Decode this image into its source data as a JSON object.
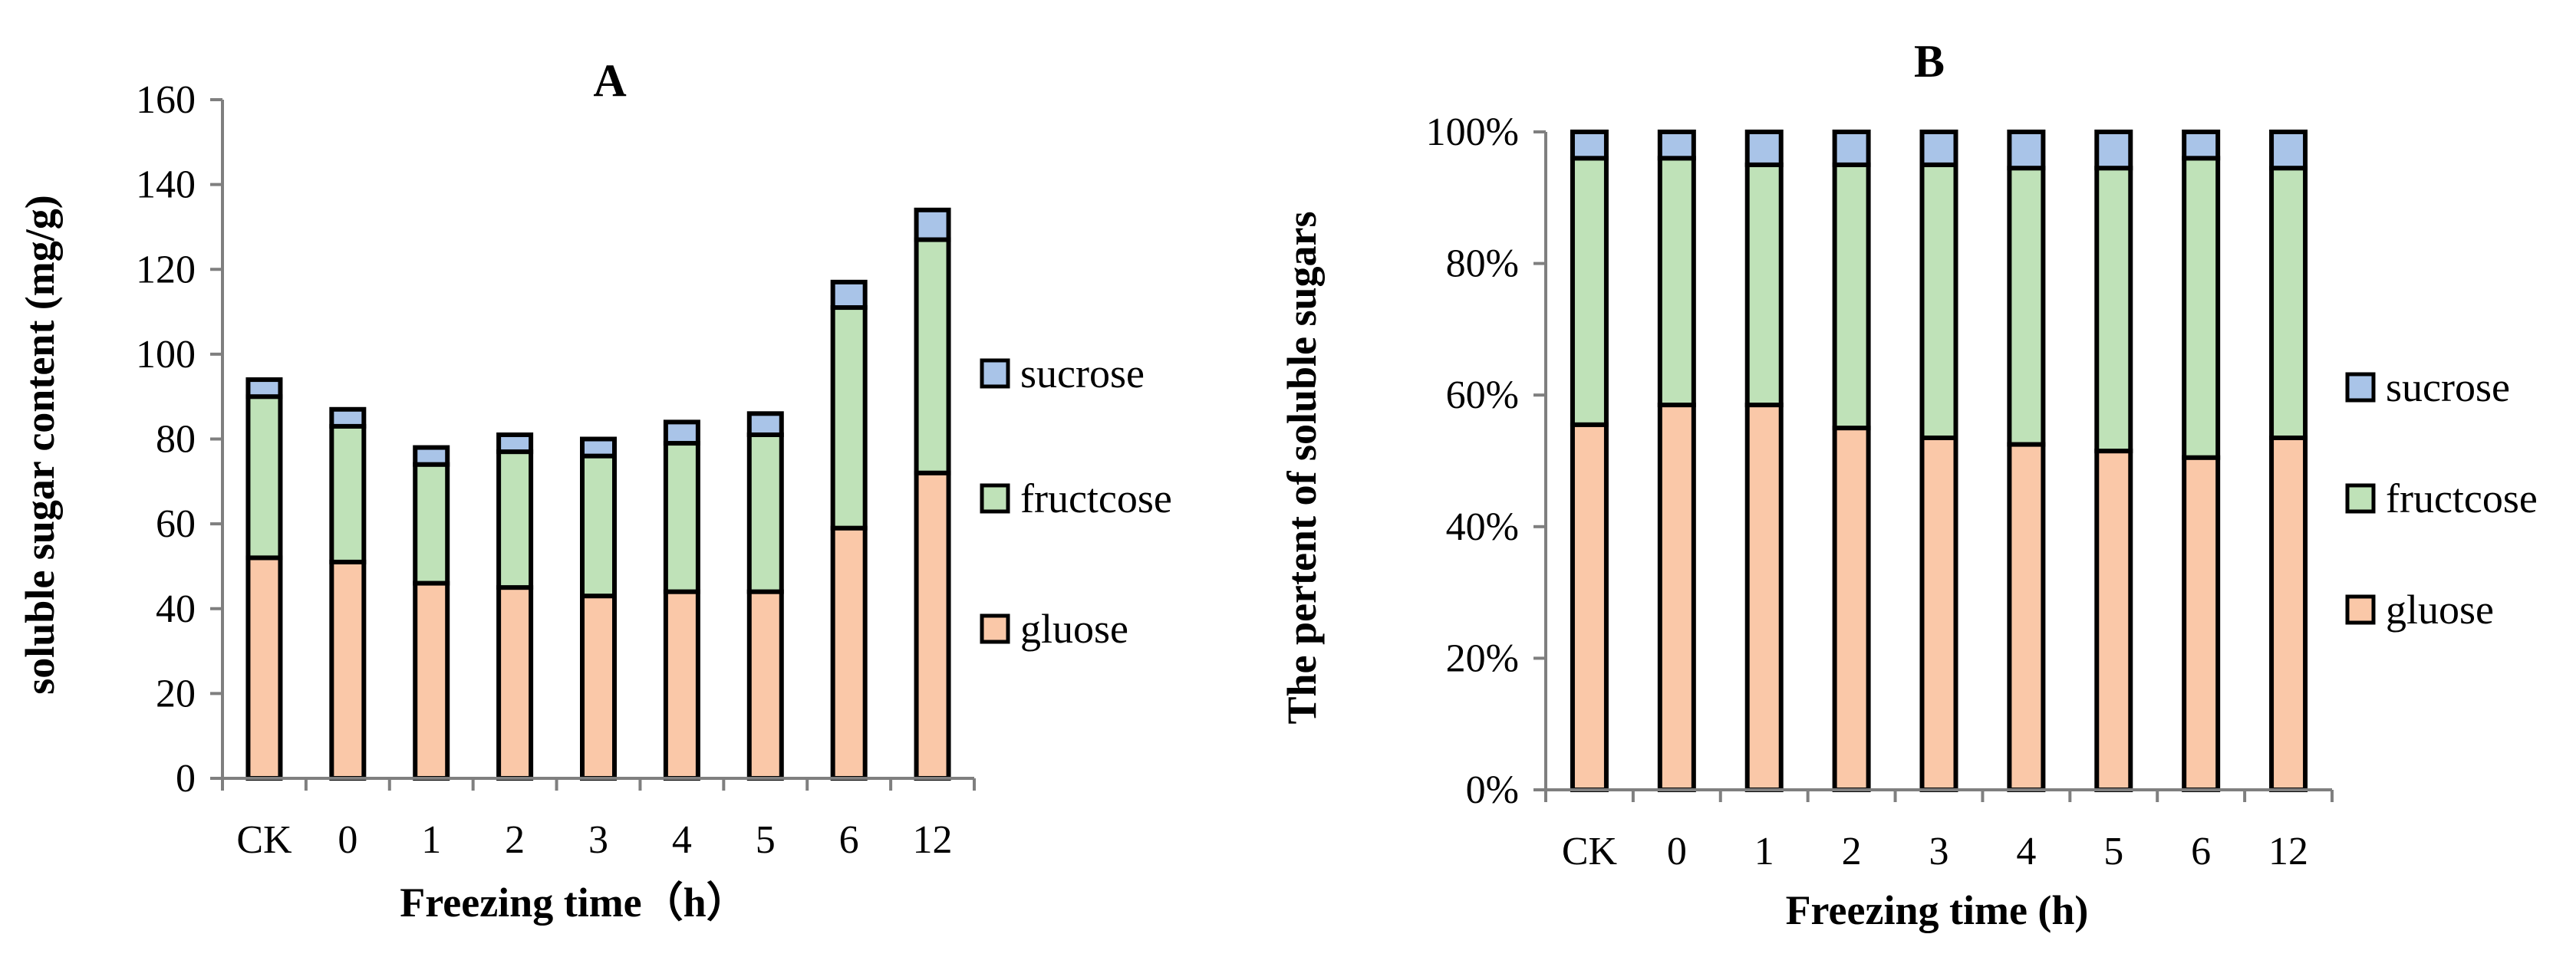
{
  "chart_data": [
    {
      "type": "bar",
      "stacked": true,
      "title": "A",
      "xlabel": "Freezing time（h）",
      "ylabel": "soluble sugar content (mg/g)",
      "categories": [
        "CK",
        "0",
        "1",
        "2",
        "3",
        "4",
        "5",
        "6",
        "12"
      ],
      "ylim": [
        0,
        160
      ],
      "yticks": [
        0,
        20,
        40,
        60,
        80,
        100,
        120,
        140,
        160
      ],
      "ytick_labels": [
        "0",
        "20",
        "40",
        "60",
        "80",
        "100",
        "120",
        "140",
        "160"
      ],
      "series": [
        {
          "name": "gluose",
          "color": "#fac8a8",
          "values": [
            52,
            51,
            46,
            45,
            43,
            44,
            44,
            59,
            72
          ]
        },
        {
          "name": "fructcose",
          "color": "#bfe2b8",
          "values": [
            38,
            32,
            28,
            32,
            33,
            35,
            37,
            52,
            55
          ]
        },
        {
          "name": "sucrose",
          "color": "#a9c4e8",
          "values": [
            4,
            4,
            4,
            4,
            4,
            5,
            5,
            6,
            7
          ]
        }
      ],
      "legend_order": [
        "sucrose",
        "fructcose",
        "gluose"
      ],
      "legend": "right"
    },
    {
      "type": "bar",
      "stacked": true,
      "title": "B",
      "xlabel": "Freezing time (h)",
      "ylabel": "The pertent of soluble sugars",
      "categories": [
        "CK",
        "0",
        "1",
        "2",
        "3",
        "4",
        "5",
        "6",
        "12"
      ],
      "ylim": [
        0,
        100
      ],
      "yticks": [
        0,
        20,
        40,
        60,
        80,
        100
      ],
      "ytick_labels": [
        "0%",
        "20%",
        "40%",
        "60%",
        "80%",
        "100%"
      ],
      "series": [
        {
          "name": "gluose",
          "color": "#fac8a8",
          "values": [
            55.5,
            58.5,
            58.5,
            55,
            53.5,
            52.5,
            51.5,
            50.5,
            53.5
          ]
        },
        {
          "name": "fructcose",
          "color": "#bfe2b8",
          "values": [
            40.5,
            37.5,
            36.5,
            40,
            41.5,
            42,
            43,
            45.5,
            41
          ]
        },
        {
          "name": "sucrose",
          "color": "#a9c4e8",
          "values": [
            4,
            4,
            5,
            5,
            5,
            5.5,
            5.5,
            4,
            5.5
          ]
        }
      ],
      "legend_order": [
        "sucrose",
        "fructcose",
        "gluose"
      ],
      "legend": "right"
    }
  ]
}
